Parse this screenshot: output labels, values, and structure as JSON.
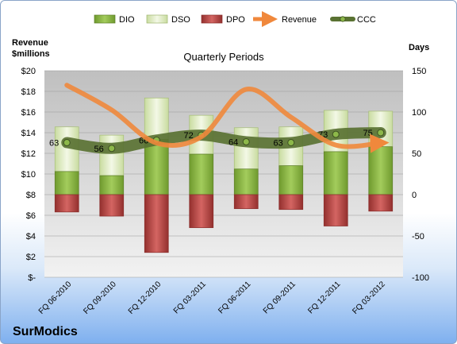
{
  "chart_data": {
    "type": "bar",
    "title": "Quarterly Periods",
    "company": "SurModics",
    "left_axis_label": [
      "Revenue",
      "$millions"
    ],
    "right_axis_label": "Days",
    "left_ticks": [
      "$20",
      "$18",
      "$16",
      "$14",
      "$12",
      "$10",
      "$8",
      "$6",
      "$4",
      "$2",
      "$-"
    ],
    "right_ticks": [
      "150",
      "100",
      "50",
      "0",
      "-50",
      "-100"
    ],
    "left_ylim": [
      0,
      20
    ],
    "right_ylim": [
      -100,
      150
    ],
    "legend_position": "top",
    "categories": [
      "FQ 06-2010",
      "FQ 09-2010",
      "FQ 12-2010",
      "FQ 03-2011",
      "FQ 06-2011",
      "FQ 09-2011",
      "FQ 12-2011",
      "FQ 03-2012"
    ],
    "series": [
      {
        "name": "DIO",
        "axis": "days",
        "color": "#8db84a",
        "values": [
          28,
          23,
          67,
          49,
          31,
          35,
          52,
          58
        ]
      },
      {
        "name": "DSO",
        "axis": "days",
        "color": "#e4efc8",
        "values": [
          54,
          49,
          50,
          47,
          50,
          47,
          50,
          43
        ]
      },
      {
        "name": "DPO",
        "axis": "days",
        "color": "#c0504d",
        "values": [
          -21,
          -26,
          -70,
          -40,
          -17,
          -18,
          -38,
          -20
        ]
      },
      {
        "name": "Revenue",
        "axis": "revenue",
        "color": "#f0883c",
        "values": [
          18.6,
          16.2,
          13.0,
          13.6,
          18.2,
          15.5,
          12.8,
          13.0
        ]
      },
      {
        "name": "CCC",
        "axis": "days",
        "color": "#5a7233",
        "values": [
          63,
          56,
          66,
          72,
          64,
          63,
          73,
          75
        ]
      }
    ]
  }
}
